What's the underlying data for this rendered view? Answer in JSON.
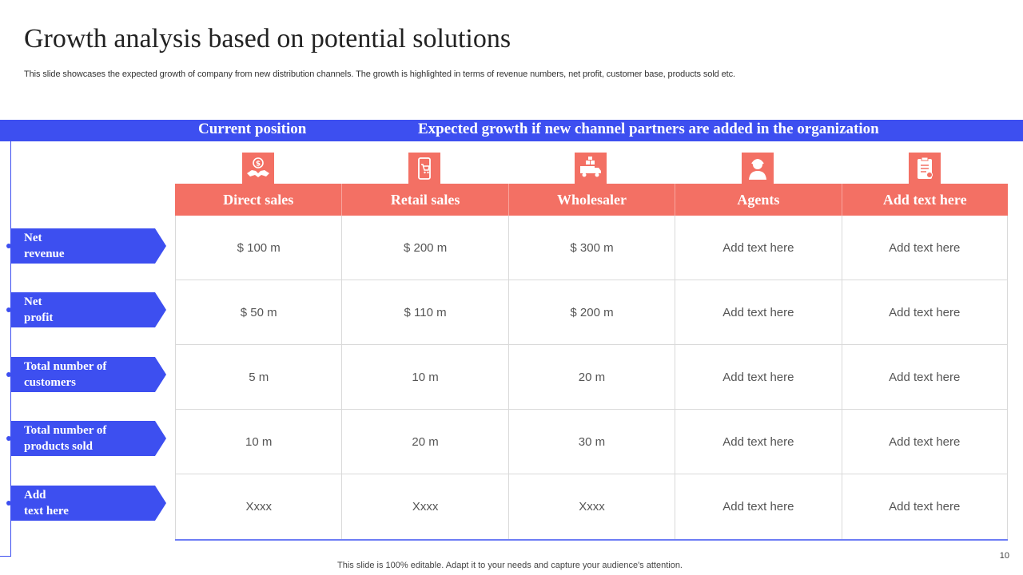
{
  "title": "Growth analysis based on potential solutions",
  "subtitle": "This slide showcases the expected growth of company from new distribution channels. The growth is highlighted in terms of revenue numbers, net profit, customer base, products sold etc.",
  "band": {
    "current": "Current  position",
    "expected": "Expected growth  if new channel partners  are added in the organization"
  },
  "columns": [
    {
      "label": "Direct sales",
      "icon": "handshake-dollar-icon"
    },
    {
      "label": "Retail sales",
      "icon": "mobile-cart-icon"
    },
    {
      "label": "Wholesaler",
      "icon": "delivery-truck-icon"
    },
    {
      "label": "Agents",
      "icon": "agent-person-icon"
    },
    {
      "label": "Add text here",
      "icon": "clipboard-checklist-icon"
    }
  ],
  "rows": [
    {
      "label_line1": "Net",
      "label_line2": "revenue",
      "cells": [
        "$ 100 m",
        "$ 200 m",
        "$ 300 m",
        "Add text here",
        "Add text here"
      ]
    },
    {
      "label_line1": "Net",
      "label_line2": "profit",
      "cells": [
        "$ 50 m",
        "$ 110 m",
        "$ 200 m",
        "Add text here",
        "Add text here"
      ]
    },
    {
      "label_line1": "Total number  of",
      "label_line2": "customers",
      "cells": [
        "5 m",
        "10 m",
        "20 m",
        "Add text here",
        "Add text here"
      ]
    },
    {
      "label_line1": "Total number  of",
      "label_line2": "products  sold",
      "cells": [
        "10 m",
        "20 m",
        "30 m",
        "Add text here",
        "Add text here"
      ]
    },
    {
      "label_line1": "Add",
      "label_line2": "text here",
      "cells": [
        "Xxxx",
        "Xxxx",
        "Xxxx",
        "Add text here",
        "Add text here"
      ]
    }
  ],
  "footer": "This slide is 100% editable. Adapt it to your needs and capture your audience's attention.",
  "page_number": "10",
  "colors": {
    "primary_blue": "#3d4ff0",
    "coral": "#f37064"
  }
}
